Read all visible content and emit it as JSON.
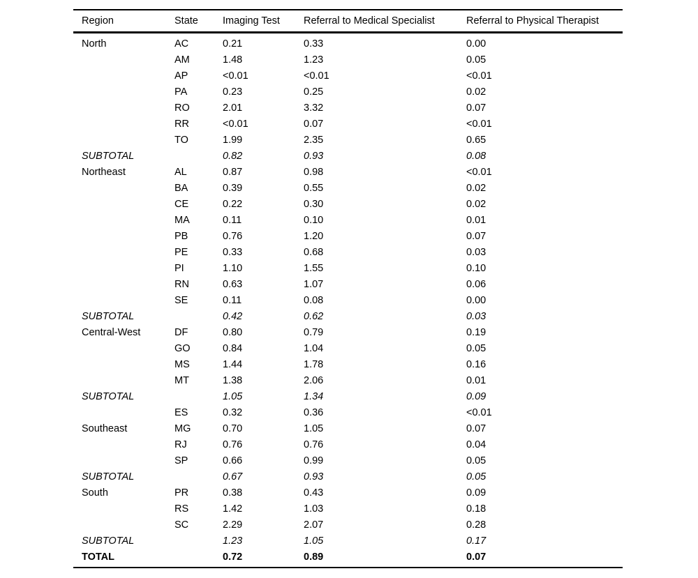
{
  "table": {
    "headers": [
      "Region",
      "State",
      "Imaging Test",
      "Referral to Medical Specialist",
      "Referral to Physical Therapist"
    ],
    "rows": [
      {
        "region": "North",
        "state": "AC",
        "imaging_test": "0.21",
        "referral_specialist": "0.33",
        "referral_therapist": "0.00",
        "row_type": "data"
      },
      {
        "region": "",
        "state": "AM",
        "imaging_test": "1.48",
        "referral_specialist": "1.23",
        "referral_therapist": "0.05",
        "row_type": "data"
      },
      {
        "region": "",
        "state": "AP",
        "imaging_test": "<0.01",
        "referral_specialist": "<0.01",
        "referral_therapist": "<0.01",
        "row_type": "data"
      },
      {
        "region": "",
        "state": "PA",
        "imaging_test": "0.23",
        "referral_specialist": "0.25",
        "referral_therapist": "0.02",
        "row_type": "data"
      },
      {
        "region": "",
        "state": "RO",
        "imaging_test": "2.01",
        "referral_specialist": "3.32",
        "referral_therapist": "0.07",
        "row_type": "data"
      },
      {
        "region": "",
        "state": "RR",
        "imaging_test": "<0.01",
        "referral_specialist": "0.07",
        "referral_therapist": "<0.01",
        "row_type": "data"
      },
      {
        "region": "",
        "state": "TO",
        "imaging_test": "1.99",
        "referral_specialist": "2.35",
        "referral_therapist": "0.65",
        "row_type": "data"
      },
      {
        "region": "SUBTOTAL",
        "state": "",
        "imaging_test": "0.82",
        "referral_specialist": "0.93",
        "referral_therapist": "0.08",
        "row_type": "subtotal"
      },
      {
        "region": "Northeast",
        "state": "AL",
        "imaging_test": "0.87",
        "referral_specialist": "0.98",
        "referral_therapist": "<0.01",
        "row_type": "data"
      },
      {
        "region": "",
        "state": "BA",
        "imaging_test": "0.39",
        "referral_specialist": "0.55",
        "referral_therapist": "0.02",
        "row_type": "data"
      },
      {
        "region": "",
        "state": "CE",
        "imaging_test": "0.22",
        "referral_specialist": "0.30",
        "referral_therapist": "0.02",
        "row_type": "data"
      },
      {
        "region": "",
        "state": "MA",
        "imaging_test": "0.11",
        "referral_specialist": "0.10",
        "referral_therapist": "0.01",
        "row_type": "data"
      },
      {
        "region": "",
        "state": "PB",
        "imaging_test": "0.76",
        "referral_specialist": "1.20",
        "referral_therapist": "0.07",
        "row_type": "data"
      },
      {
        "region": "",
        "state": "PE",
        "imaging_test": "0.33",
        "referral_specialist": "0.68",
        "referral_therapist": "0.03",
        "row_type": "data"
      },
      {
        "region": "",
        "state": "PI",
        "imaging_test": "1.10",
        "referral_specialist": "1.55",
        "referral_therapist": "0.10",
        "row_type": "data"
      },
      {
        "region": "",
        "state": "RN",
        "imaging_test": "0.63",
        "referral_specialist": "1.07",
        "referral_therapist": "0.06",
        "row_type": "data"
      },
      {
        "region": "",
        "state": "SE",
        "imaging_test": "0.11",
        "referral_specialist": "0.08",
        "referral_therapist": "0.00",
        "row_type": "data"
      },
      {
        "region": "SUBTOTAL",
        "state": "",
        "imaging_test": "0.42",
        "referral_specialist": "0.62",
        "referral_therapist": "0.03",
        "row_type": "subtotal"
      },
      {
        "region": "Central-West",
        "state": "DF",
        "imaging_test": "0.80",
        "referral_specialist": "0.79",
        "referral_therapist": "0.19",
        "row_type": "data"
      },
      {
        "region": "",
        "state": "GO",
        "imaging_test": "0.84",
        "referral_specialist": "1.04",
        "referral_therapist": "0.05",
        "row_type": "data"
      },
      {
        "region": "",
        "state": "MS",
        "imaging_test": "1.44",
        "referral_specialist": "1.78",
        "referral_therapist": "0.16",
        "row_type": "data"
      },
      {
        "region": "",
        "state": "MT",
        "imaging_test": "1.38",
        "referral_specialist": "2.06",
        "referral_therapist": "0.01",
        "row_type": "data"
      },
      {
        "region": "SUBTOTAL",
        "state": "",
        "imaging_test": "1.05",
        "referral_specialist": "1.34",
        "referral_therapist": "0.09",
        "row_type": "subtotal"
      },
      {
        "region": "",
        "state": "ES",
        "imaging_test": "0.32",
        "referral_specialist": "0.36",
        "referral_therapist": "<0.01",
        "row_type": "data"
      },
      {
        "region": "Southeast",
        "state": "MG",
        "imaging_test": "0.70",
        "referral_specialist": "1.05",
        "referral_therapist": "0.07",
        "row_type": "data"
      },
      {
        "region": "",
        "state": "RJ",
        "imaging_test": "0.76",
        "referral_specialist": "0.76",
        "referral_therapist": "0.04",
        "row_type": "data"
      },
      {
        "region": "",
        "state": "SP",
        "imaging_test": "0.66",
        "referral_specialist": "0.99",
        "referral_therapist": "0.05",
        "row_type": "data"
      },
      {
        "region": "SUBTOTAL",
        "state": "",
        "imaging_test": "0.67",
        "referral_specialist": "0.93",
        "referral_therapist": "0.05",
        "row_type": "subtotal"
      },
      {
        "region": "South",
        "state": "PR",
        "imaging_test": "0.38",
        "referral_specialist": "0.43",
        "referral_therapist": "0.09",
        "row_type": "data"
      },
      {
        "region": "",
        "state": "RS",
        "imaging_test": "1.42",
        "referral_specialist": "1.03",
        "referral_therapist": "0.18",
        "row_type": "data"
      },
      {
        "region": "",
        "state": "SC",
        "imaging_test": "2.29",
        "referral_specialist": "2.07",
        "referral_therapist": "0.28",
        "row_type": "data"
      },
      {
        "region": "SUBTOTAL",
        "state": "",
        "imaging_test": "1.23",
        "referral_specialist": "1.05",
        "referral_therapist": "0.17",
        "row_type": "subtotal"
      },
      {
        "region": "TOTAL",
        "state": "",
        "imaging_test": "0.72",
        "referral_specialist": "0.89",
        "referral_therapist": "0.07",
        "row_type": "total"
      }
    ]
  }
}
